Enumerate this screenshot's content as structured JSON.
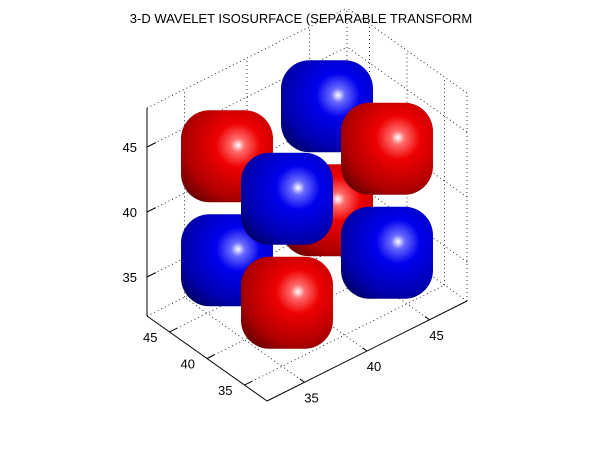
{
  "chart_data": {
    "type": "isosurface-3d",
    "title": "3-D WAVELET ISOSURFACE (SEPARABLE TRANSFORM",
    "xlabel": "",
    "ylabel": "",
    "zlabel": "",
    "x_ticks": [
      "35",
      "40",
      "45"
    ],
    "y_ticks": [
      "35",
      "40",
      "45"
    ],
    "z_ticks": [
      "35",
      "40",
      "45"
    ],
    "xlim": [
      32,
      48
    ],
    "ylim": [
      32,
      48
    ],
    "zlim": [
      32,
      48
    ],
    "grid": true,
    "colors": {
      "positive": "#ff0000",
      "negative": "#0000ff"
    },
    "blobs": [
      {
        "x": 36,
        "y": 44,
        "z": 44,
        "sign": "positive"
      },
      {
        "x": 44,
        "y": 44,
        "z": 44,
        "sign": "negative"
      },
      {
        "x": 36,
        "y": 36,
        "z": 44,
        "sign": "negative"
      },
      {
        "x": 44,
        "y": 36,
        "z": 44,
        "sign": "positive"
      },
      {
        "x": 36,
        "y": 44,
        "z": 36,
        "sign": "negative"
      },
      {
        "x": 44,
        "y": 44,
        "z": 36,
        "sign": "positive"
      },
      {
        "x": 36,
        "y": 36,
        "z": 36,
        "sign": "positive"
      },
      {
        "x": 44,
        "y": 36,
        "z": 36,
        "sign": "negative"
      }
    ]
  }
}
